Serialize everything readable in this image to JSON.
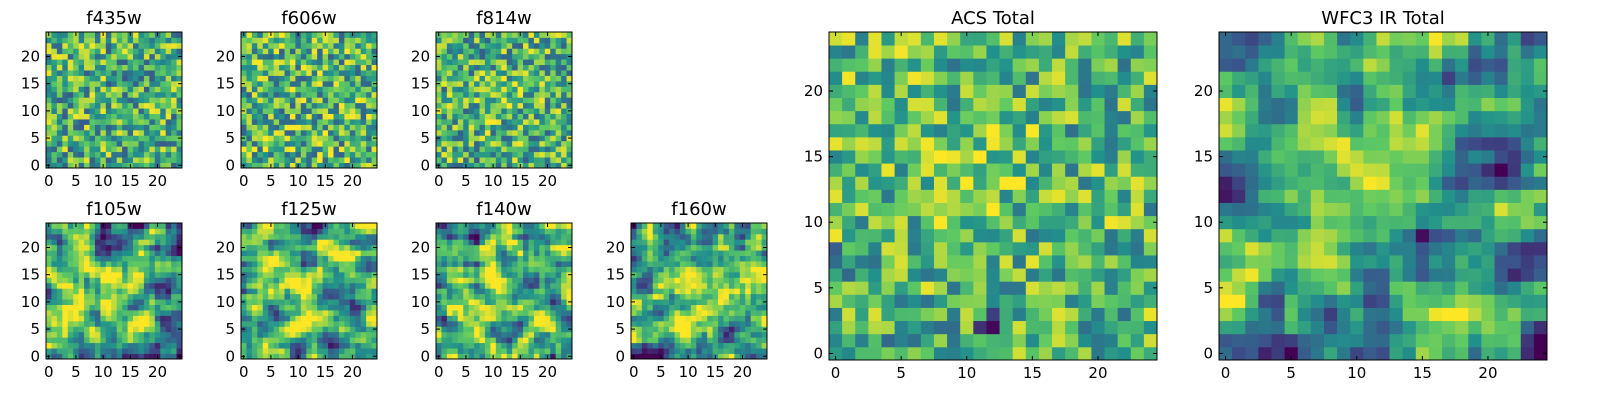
{
  "figure": {
    "colormap": "viridis",
    "colormap_stops": [
      "#440154",
      "#3b528b",
      "#21918c",
      "#5ec962",
      "#fde725"
    ],
    "background": "#ffffff"
  },
  "chart_data": [
    {
      "id": "f435w",
      "type": "heatmap",
      "title": "f435w",
      "grid_size": 25,
      "xticks": [
        0,
        5,
        10,
        15,
        20
      ],
      "yticks": [
        0,
        5,
        10,
        15,
        20
      ],
      "xlim": [
        0,
        24
      ],
      "ylim": [
        0,
        24
      ],
      "grid": false,
      "value_range": [
        0,
        1
      ],
      "smoothness": 0,
      "base": 0.64,
      "noise": 0.34,
      "seed": 11,
      "features": []
    },
    {
      "id": "f606w",
      "type": "heatmap",
      "title": "f606w",
      "grid_size": 25,
      "xticks": [
        0,
        5,
        10,
        15,
        20
      ],
      "yticks": [
        0,
        5,
        10,
        15,
        20
      ],
      "xlim": [
        0,
        24
      ],
      "ylim": [
        0,
        24
      ],
      "grid": false,
      "value_range": [
        0,
        1
      ],
      "smoothness": 0,
      "base": 0.66,
      "noise": 0.36,
      "seed": 23,
      "features": []
    },
    {
      "id": "f814w",
      "type": "heatmap",
      "title": "f814w",
      "grid_size": 25,
      "xticks": [
        0,
        5,
        10,
        15,
        20
      ],
      "yticks": [
        0,
        5,
        10,
        15,
        20
      ],
      "xlim": [
        0,
        24
      ],
      "ylim": [
        0,
        24
      ],
      "grid": false,
      "value_range": [
        0,
        1
      ],
      "smoothness": 0,
      "base": 0.64,
      "noise": 0.34,
      "seed": 37,
      "features": [
        {
          "cx": 12,
          "cy": 13,
          "sigma": 3,
          "amp": 0.12
        }
      ]
    },
    {
      "id": "f105w",
      "type": "heatmap",
      "title": "f105w",
      "grid_size": 25,
      "xticks": [
        0,
        5,
        10,
        15,
        20
      ],
      "yticks": [
        0,
        5,
        10,
        15,
        20
      ],
      "xlim": [
        0,
        24
      ],
      "ylim": [
        0,
        24
      ],
      "grid": false,
      "value_range": [
        0,
        1
      ],
      "smoothness": 1,
      "base": 0.58,
      "noise": 0.42,
      "seed": 53,
      "features": [
        {
          "cx": 12,
          "cy": 11,
          "sigma": 3.5,
          "amp": 0.22
        }
      ]
    },
    {
      "id": "f125w",
      "type": "heatmap",
      "title": "f125w",
      "grid_size": 25,
      "xticks": [
        0,
        5,
        10,
        15,
        20
      ],
      "yticks": [
        0,
        5,
        10,
        15,
        20
      ],
      "xlim": [
        0,
        24
      ],
      "ylim": [
        0,
        24
      ],
      "grid": false,
      "value_range": [
        0,
        1
      ],
      "smoothness": 1,
      "base": 0.62,
      "noise": 0.38,
      "seed": 71,
      "features": [
        {
          "cx": 12,
          "cy": 12,
          "sigma": 4,
          "amp": 0.14
        }
      ]
    },
    {
      "id": "f140w",
      "type": "heatmap",
      "title": "f140w",
      "grid_size": 25,
      "xticks": [
        0,
        5,
        10,
        15,
        20
      ],
      "yticks": [
        0,
        5,
        10,
        15,
        20
      ],
      "xlim": [
        0,
        24
      ],
      "ylim": [
        0,
        24
      ],
      "grid": false,
      "value_range": [
        0,
        1
      ],
      "smoothness": 1,
      "base": 0.62,
      "noise": 0.36,
      "seed": 89,
      "features": [
        {
          "cx": 11,
          "cy": 13,
          "sigma": 4,
          "amp": 0.18
        }
      ]
    },
    {
      "id": "f160w",
      "type": "heatmap",
      "title": "f160w",
      "grid_size": 25,
      "xticks": [
        0,
        5,
        10,
        15,
        20
      ],
      "yticks": [
        0,
        5,
        10,
        15,
        20
      ],
      "xlim": [
        0,
        24
      ],
      "ylim": [
        0,
        24
      ],
      "grid": false,
      "value_range": [
        0,
        1
      ],
      "smoothness": 1,
      "base": 0.6,
      "noise": 0.38,
      "seed": 97,
      "features": [
        {
          "cx": 12,
          "cy": 13,
          "sigma": 3.5,
          "amp": 0.2
        }
      ]
    },
    {
      "id": "acs-total",
      "type": "heatmap",
      "title": "ACS Total",
      "grid_size": 25,
      "xticks": [
        0,
        5,
        10,
        15,
        20
      ],
      "yticks": [
        0,
        5,
        10,
        15,
        20
      ],
      "xlim": [
        0,
        24
      ],
      "ylim": [
        0,
        24
      ],
      "grid": false,
      "value_range": [
        0,
        1
      ],
      "smoothness": 0,
      "base": 0.68,
      "noise": 0.3,
      "seed": 131,
      "features": [
        {
          "cx": 11,
          "cy": 14,
          "sigma": 2.5,
          "amp": 0.16
        },
        {
          "cx": 12,
          "cy": 2,
          "sigma": 1,
          "amp": -0.4
        },
        {
          "cx": 6,
          "cy": 2,
          "sigma": 1,
          "amp": -0.35
        },
        {
          "cx": 1,
          "cy": 7,
          "sigma": 0.8,
          "amp": -0.4
        }
      ]
    },
    {
      "id": "wfc3-ir-total",
      "type": "heatmap",
      "title": "WFC3 IR Total",
      "grid_size": 25,
      "xticks": [
        0,
        5,
        10,
        15,
        20
      ],
      "yticks": [
        0,
        5,
        10,
        15,
        20
      ],
      "xlim": [
        0,
        24
      ],
      "ylim": [
        0,
        24
      ],
      "grid": false,
      "value_range": [
        0,
        1
      ],
      "smoothness": 1,
      "base": 0.56,
      "noise": 0.32,
      "seed": 157,
      "features": [
        {
          "cx": 11,
          "cy": 14,
          "sigma": 3,
          "amp": 0.32
        },
        {
          "cx": 20.5,
          "cy": 13.5,
          "sigma": 0.9,
          "amp": -0.6
        },
        {
          "cx": 3.5,
          "cy": 4,
          "sigma": 0.9,
          "amp": -0.5
        },
        {
          "cx": 14.5,
          "cy": 6,
          "sigma": 0.8,
          "amp": -0.4
        },
        {
          "cx": 23.5,
          "cy": 0.5,
          "sigma": 0.8,
          "amp": -0.5
        }
      ]
    }
  ]
}
